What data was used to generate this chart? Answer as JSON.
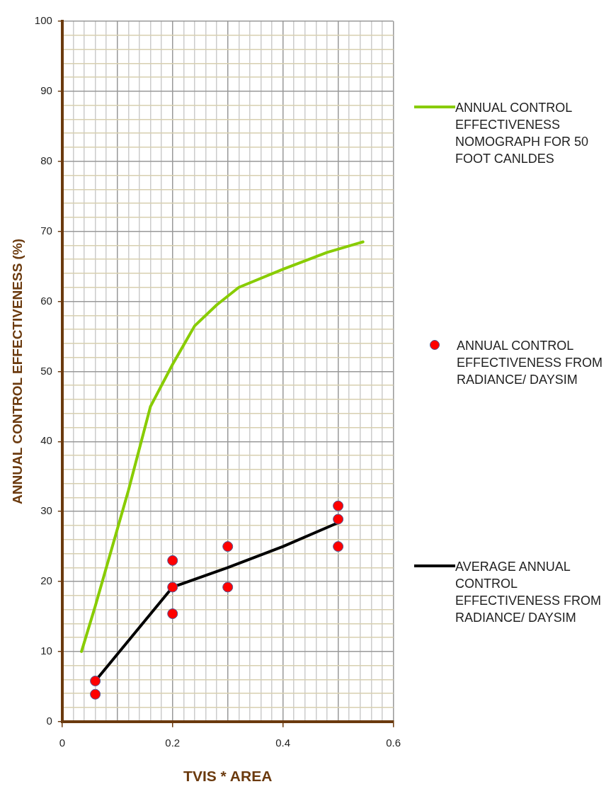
{
  "chart_data": {
    "type": "line",
    "xlabel": "TVIS * AREA",
    "ylabel": "ANNUAL CONTROL EFFECTIVENESS (%)",
    "xlim": [
      0,
      0.6
    ],
    "ylim": [
      0,
      100
    ],
    "xticks": [
      0,
      {
        "value": 0.02,
        "label": null
      },
      {
        "value": 0.04,
        "label": null
      },
      {
        "value": 0.06,
        "label": null
      },
      {
        "value": 0.08,
        "label": null
      },
      {
        "value": 0.1,
        "label": null
      },
      {
        "value": 0.12,
        "label": null
      },
      {
        "value": 0.14,
        "label": null
      },
      {
        "value": 0.16,
        "label": null
      },
      {
        "value": 0.18,
        "label": null
      },
      0.2,
      {
        "value": 0.22,
        "label": null
      },
      {
        "value": 0.24,
        "label": null
      },
      {
        "value": 0.26,
        "label": null
      },
      {
        "value": 0.28,
        "label": null
      },
      {
        "value": 0.3,
        "label": null
      },
      {
        "value": 0.32,
        "label": null
      },
      {
        "value": 0.34,
        "label": null
      },
      {
        "value": 0.36,
        "label": null
      },
      {
        "value": 0.38,
        "label": null
      },
      0.4,
      {
        "value": 0.42,
        "label": null
      },
      {
        "value": 0.44,
        "label": null
      },
      {
        "value": 0.46,
        "label": null
      },
      {
        "value": 0.48,
        "label": null
      },
      {
        "value": 0.5,
        "label": null
      },
      {
        "value": 0.52,
        "label": null
      },
      {
        "value": 0.54,
        "label": null
      },
      {
        "value": 0.56,
        "label": null
      },
      {
        "value": 0.58,
        "label": null
      },
      0.6
    ],
    "yticks": [
      0,
      {
        "value": 2,
        "label": null
      },
      {
        "value": 4,
        "label": null
      },
      {
        "value": 6,
        "label": null
      },
      {
        "value": 8,
        "label": null
      },
      10,
      {
        "value": 12,
        "label": null
      },
      {
        "value": 14,
        "label": null
      },
      {
        "value": 16,
        "label": null
      },
      {
        "value": 18,
        "label": null
      },
      20,
      {
        "value": 22,
        "label": null
      },
      {
        "value": 24,
        "label": null
      },
      {
        "value": 26,
        "label": null
      },
      {
        "value": 28,
        "label": null
      },
      30,
      {
        "value": 32,
        "label": null
      },
      {
        "value": 34,
        "label": null
      },
      {
        "value": 36,
        "label": null
      },
      {
        "value": 38,
        "label": null
      },
      40,
      {
        "value": 42,
        "label": null
      },
      {
        "value": 44,
        "label": null
      },
      {
        "value": 46,
        "label": null
      },
      {
        "value": 48,
        "label": null
      },
      50,
      {
        "value": 52,
        "label": null
      },
      {
        "value": 54,
        "label": null
      },
      {
        "value": 56,
        "label": null
      },
      {
        "value": 58,
        "label": null
      },
      60,
      {
        "value": 62,
        "label": null
      },
      {
        "value": 64,
        "label": null
      },
      {
        "value": 66,
        "label": null
      },
      {
        "value": 68,
        "label": null
      },
      70,
      {
        "value": 72,
        "label": null
      },
      {
        "value": 74,
        "label": null
      },
      {
        "value": 76,
        "label": null
      },
      {
        "value": 78,
        "label": null
      },
      80,
      {
        "value": 82,
        "label": null
      },
      {
        "value": 84,
        "label": null
      },
      {
        "value": 86,
        "label": null
      },
      {
        "value": 88,
        "label": null
      },
      90,
      {
        "value": 92,
        "label": null
      },
      {
        "value": 94,
        "label": null
      },
      {
        "value": 96,
        "label": null
      },
      {
        "value": 98,
        "label": null
      },
      100
    ],
    "grid": true,
    "legend": "right",
    "series": [
      {
        "name": "ANNUAL CONTROL EFFECTIVENESS NOMOGRAPH FOR 50 FOOT CANLDES",
        "type": "line",
        "color": "#88cc00",
        "marker": "none",
        "x": [
          0.035,
          0.06,
          0.1,
          0.12,
          0.16,
          0.2,
          0.24,
          0.28,
          0.32,
          0.4,
          0.48,
          0.545
        ],
        "values": [
          10,
          16.5,
          27.5,
          33,
          45,
          51,
          56.5,
          59.5,
          62,
          64.6,
          67,
          68.5
        ]
      },
      {
        "name": "ANNUAL CONTROL EFFECTIVENESS FROM RADIANCE/ DAYSIM",
        "type": "scatter",
        "color": "#ff0000",
        "marker": "circle",
        "x": [
          0.06,
          0.06,
          0.2,
          0.2,
          0.2,
          0.3,
          0.3,
          0.5,
          0.5,
          0.5
        ],
        "values": [
          5.8,
          3.9,
          23,
          19.2,
          15.4,
          25,
          19.2,
          30.8,
          28.9,
          25
        ]
      },
      {
        "name": "AVERAGE ANNUAL CONTROL EFFECTIVENESS FROM RADIANCE/ DAYSIM",
        "type": "line",
        "color": "#000000",
        "marker": "none",
        "x": [
          0.06,
          0.2,
          0.3,
          0.4,
          0.5
        ],
        "values": [
          5.8,
          19.2,
          22,
          25,
          28.4
        ]
      }
    ]
  }
}
